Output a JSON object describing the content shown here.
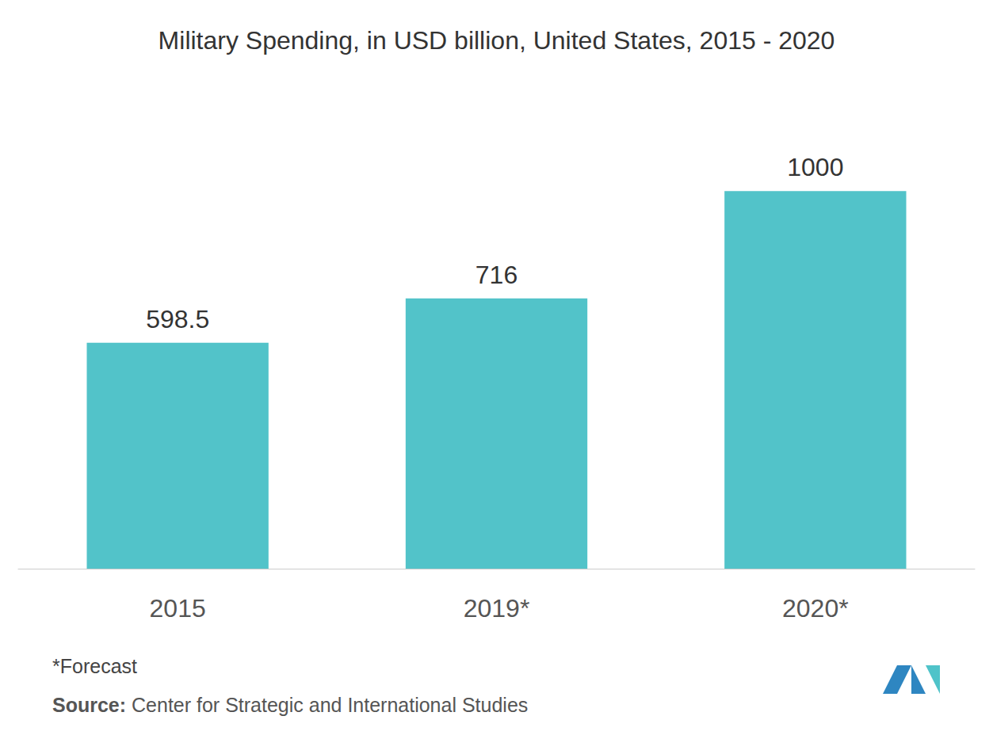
{
  "chart_data": {
    "type": "bar",
    "title": "Military Spending, in USD billion, United States, 2015 - 2020",
    "categories": [
      "2015",
      "2019*",
      "2020*"
    ],
    "values": [
      598.5,
      716,
      1000
    ],
    "color": "#52c3c9",
    "ylim": [
      0,
      1200
    ],
    "yticks": [
      0,
      200,
      400,
      600,
      800,
      1000,
      1200
    ],
    "grid": false,
    "data_labels": true,
    "tick_labels": "x",
    "footnote": "*Forecast",
    "source": "Source: Center for Strategic and International Studies"
  }
}
